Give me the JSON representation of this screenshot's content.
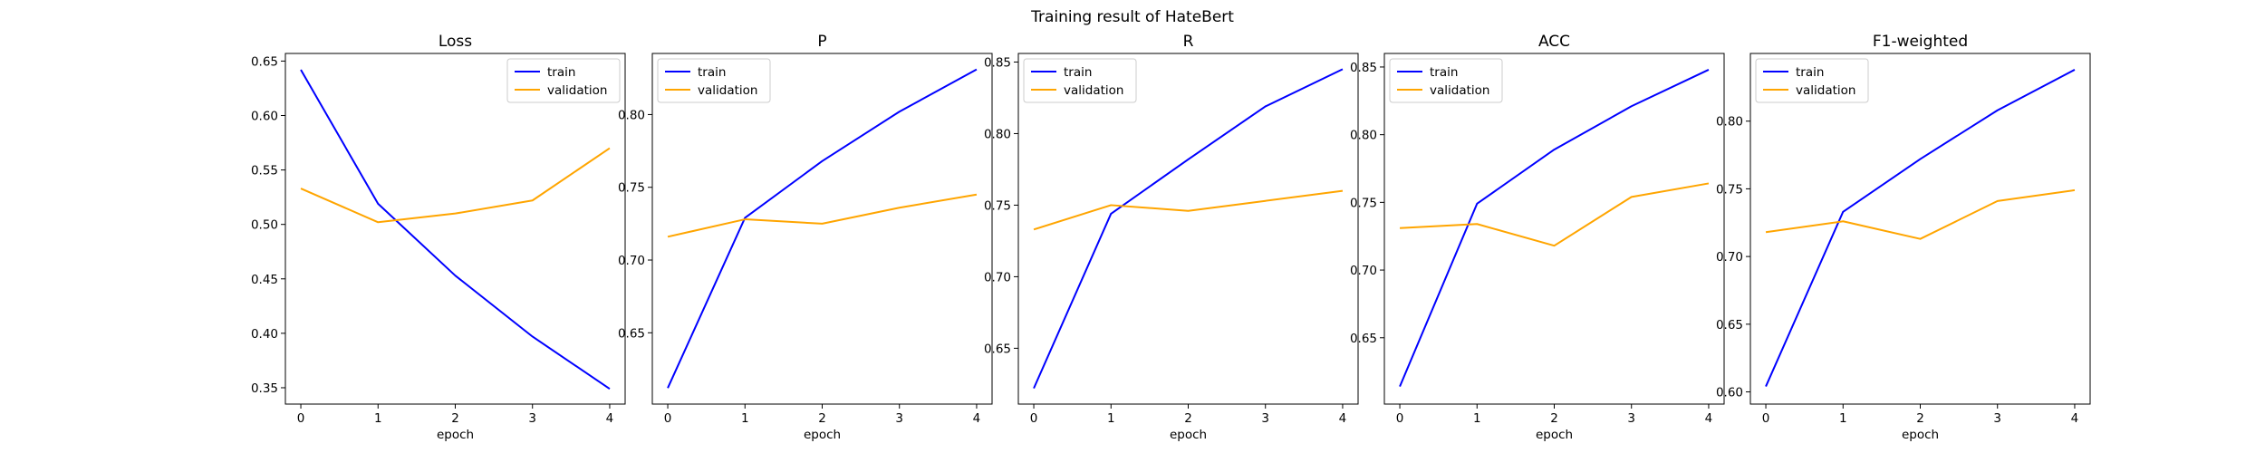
{
  "figure": {
    "title": "Training result of HateBert"
  },
  "colors": {
    "train": "#0000ff",
    "validation": "#ffa500"
  },
  "chart_data": [
    {
      "type": "line",
      "title": "Loss",
      "xlabel": "epoch",
      "ylabel": "",
      "x": [
        0,
        1,
        2,
        3,
        4
      ],
      "xticks": [
        0,
        1,
        2,
        3,
        4
      ],
      "xlim": [
        -0.2,
        4.2
      ],
      "yticks": [
        0.35,
        0.4,
        0.45,
        0.5,
        0.55,
        0.6,
        0.65
      ],
      "ylim": [
        0.335,
        0.657
      ],
      "legend": "upper right",
      "grid": false,
      "series": [
        {
          "name": "train",
          "color": "#0000ff",
          "values": [
            0.642,
            0.519,
            0.453,
            0.397,
            0.349
          ]
        },
        {
          "name": "validation",
          "color": "#ffa500",
          "values": [
            0.533,
            0.502,
            0.51,
            0.522,
            0.57
          ]
        }
      ]
    },
    {
      "type": "line",
      "title": "P",
      "xlabel": "epoch",
      "ylabel": "",
      "x": [
        0,
        1,
        2,
        3,
        4
      ],
      "xticks": [
        0,
        1,
        2,
        3,
        4
      ],
      "xlim": [
        -0.2,
        4.2
      ],
      "yticks": [
        0.65,
        0.7,
        0.75,
        0.8
      ],
      "ylim": [
        0.601,
        0.842
      ],
      "legend": "upper left",
      "grid": false,
      "series": [
        {
          "name": "train",
          "color": "#0000ff",
          "values": [
            0.612,
            0.729,
            0.768,
            0.802,
            0.831
          ]
        },
        {
          "name": "validation",
          "color": "#ffa500",
          "values": [
            0.716,
            0.728,
            0.725,
            0.736,
            0.745
          ]
        }
      ]
    },
    {
      "type": "line",
      "title": "R",
      "xlabel": "epoch",
      "ylabel": "",
      "x": [
        0,
        1,
        2,
        3,
        4
      ],
      "xticks": [
        0,
        1,
        2,
        3,
        4
      ],
      "xlim": [
        -0.2,
        4.2
      ],
      "yticks": [
        0.65,
        0.7,
        0.75,
        0.8,
        0.85
      ],
      "ylim": [
        0.611,
        0.856
      ],
      "legend": "upper left",
      "grid": false,
      "series": [
        {
          "name": "train",
          "color": "#0000ff",
          "values": [
            0.622,
            0.744,
            0.782,
            0.819,
            0.845
          ]
        },
        {
          "name": "validation",
          "color": "#ffa500",
          "values": [
            0.733,
            0.75,
            0.746,
            0.753,
            0.76
          ]
        }
      ]
    },
    {
      "type": "line",
      "title": "ACC",
      "xlabel": "epoch",
      "ylabel": "",
      "x": [
        0,
        1,
        2,
        3,
        4
      ],
      "xticks": [
        0,
        1,
        2,
        3,
        4
      ],
      "xlim": [
        -0.2,
        4.2
      ],
      "yticks": [
        0.65,
        0.7,
        0.75,
        0.8,
        0.85
      ],
      "ylim": [
        0.601,
        0.86
      ],
      "legend": "upper left",
      "grid": false,
      "series": [
        {
          "name": "train",
          "color": "#0000ff",
          "values": [
            0.614,
            0.749,
            0.789,
            0.821,
            0.848
          ]
        },
        {
          "name": "validation",
          "color": "#ffa500",
          "values": [
            0.731,
            0.734,
            0.718,
            0.754,
            0.764
          ]
        }
      ]
    },
    {
      "type": "line",
      "title": "F1-weighted",
      "xlabel": "epoch",
      "ylabel": "",
      "x": [
        0,
        1,
        2,
        3,
        4
      ],
      "xticks": [
        0,
        1,
        2,
        3,
        4
      ],
      "xlim": [
        -0.2,
        4.2
      ],
      "yticks": [
        0.6,
        0.65,
        0.7,
        0.75,
        0.8
      ],
      "ylim": [
        0.591,
        0.85
      ],
      "legend": "upper left",
      "grid": false,
      "series": [
        {
          "name": "train",
          "color": "#0000ff",
          "values": [
            0.604,
            0.733,
            0.772,
            0.808,
            0.838
          ]
        },
        {
          "name": "validation",
          "color": "#ffa500",
          "values": [
            0.718,
            0.726,
            0.713,
            0.741,
            0.749
          ]
        }
      ]
    }
  ]
}
